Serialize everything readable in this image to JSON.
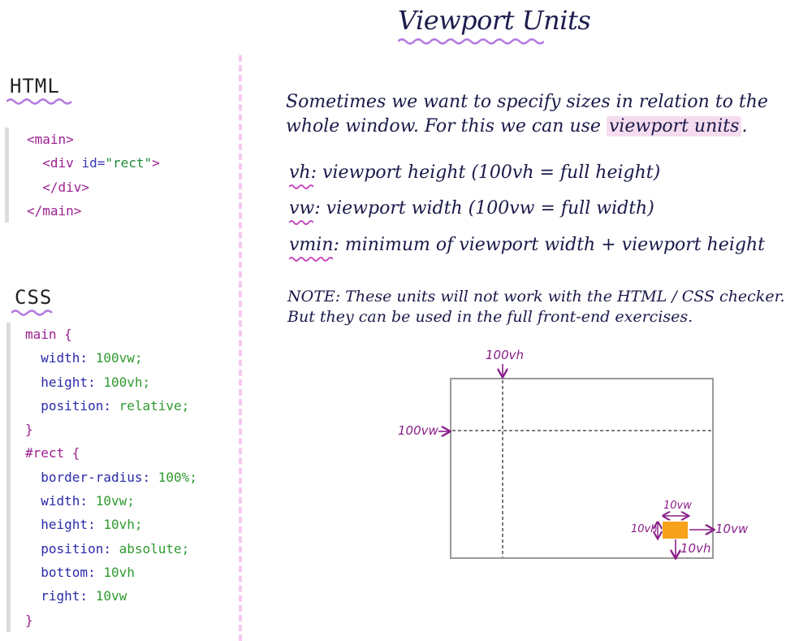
{
  "title": "Viewport Units",
  "html_section": {
    "label": "HTML",
    "lines": [
      [
        {
          "c": "tag",
          "t": "<main>"
        }
      ],
      [
        {
          "c": "pun",
          "t": "  "
        },
        {
          "c": "tag",
          "t": "<div "
        },
        {
          "c": "attr",
          "t": "id="
        },
        {
          "c": "str",
          "t": "\"rect\""
        },
        {
          "c": "tag",
          "t": ">"
        }
      ],
      [
        {
          "c": "pun",
          "t": "  "
        },
        {
          "c": "tag",
          "t": "</div>"
        }
      ],
      [
        {
          "c": "tag",
          "t": "</main>"
        }
      ]
    ]
  },
  "css_section": {
    "label": "CSS",
    "lines": [
      [
        {
          "c": "sel",
          "t": "main {"
        }
      ],
      [
        {
          "c": "pun",
          "t": "  "
        },
        {
          "c": "prop",
          "t": "width: "
        },
        {
          "c": "val",
          "t": "100vw;"
        }
      ],
      [
        {
          "c": "pun",
          "t": "  "
        },
        {
          "c": "prop",
          "t": "height: "
        },
        {
          "c": "val",
          "t": "100vh;"
        }
      ],
      [
        {
          "c": "pun",
          "t": "  "
        },
        {
          "c": "prop",
          "t": "position: "
        },
        {
          "c": "val",
          "t": "relative;"
        }
      ],
      [
        {
          "c": "sel",
          "t": "}"
        }
      ],
      [
        {
          "c": "sel",
          "t": "#rect {"
        }
      ],
      [
        {
          "c": "pun",
          "t": "  "
        },
        {
          "c": "prop",
          "t": "border-radius: "
        },
        {
          "c": "val",
          "t": "100%;"
        }
      ],
      [
        {
          "c": "pun",
          "t": "  "
        },
        {
          "c": "prop",
          "t": "width: "
        },
        {
          "c": "val",
          "t": "10vw;"
        }
      ],
      [
        {
          "c": "pun",
          "t": "  "
        },
        {
          "c": "prop",
          "t": "height: "
        },
        {
          "c": "val",
          "t": "10vh;"
        }
      ],
      [
        {
          "c": "pun",
          "t": "  "
        },
        {
          "c": "prop",
          "t": "position: "
        },
        {
          "c": "val",
          "t": "absolute;"
        }
      ],
      [
        {
          "c": "pun",
          "t": "  "
        },
        {
          "c": "prop",
          "t": "bottom: "
        },
        {
          "c": "val",
          "t": "10vh"
        }
      ],
      [
        {
          "c": "pun",
          "t": "  "
        },
        {
          "c": "prop",
          "t": "right: "
        },
        {
          "c": "val",
          "t": "10vw"
        }
      ],
      [
        {
          "c": "sel",
          "t": "}"
        }
      ]
    ]
  },
  "intro": {
    "line1": "Sometimes we want to specify sizes in relation to the",
    "line2_pre": "whole window. For this we can use",
    "line2_hl": "viewport units",
    "line2_post": "."
  },
  "definitions": [
    {
      "term": "vh",
      "text": ": viewport height (100vh = full height)"
    },
    {
      "term": "vw",
      "text": ": viewport width (100vw = full width)"
    },
    {
      "term": "vmin",
      "text": ": minimum of viewport width + viewport height"
    }
  ],
  "note": {
    "line1": "NOTE: These units will not work with the HTML / CSS checker.",
    "line2": "But they can be used in the full front-end exercises."
  },
  "diagram": {
    "label_top": "100vh",
    "label_left": "100vw",
    "rect_width_label": "10vw",
    "rect_height_label": "10vh",
    "right_label": "10vw",
    "bottom_label": "10vh",
    "rect_color": "#f7a21b",
    "accent_color": "#8a1f8a"
  }
}
